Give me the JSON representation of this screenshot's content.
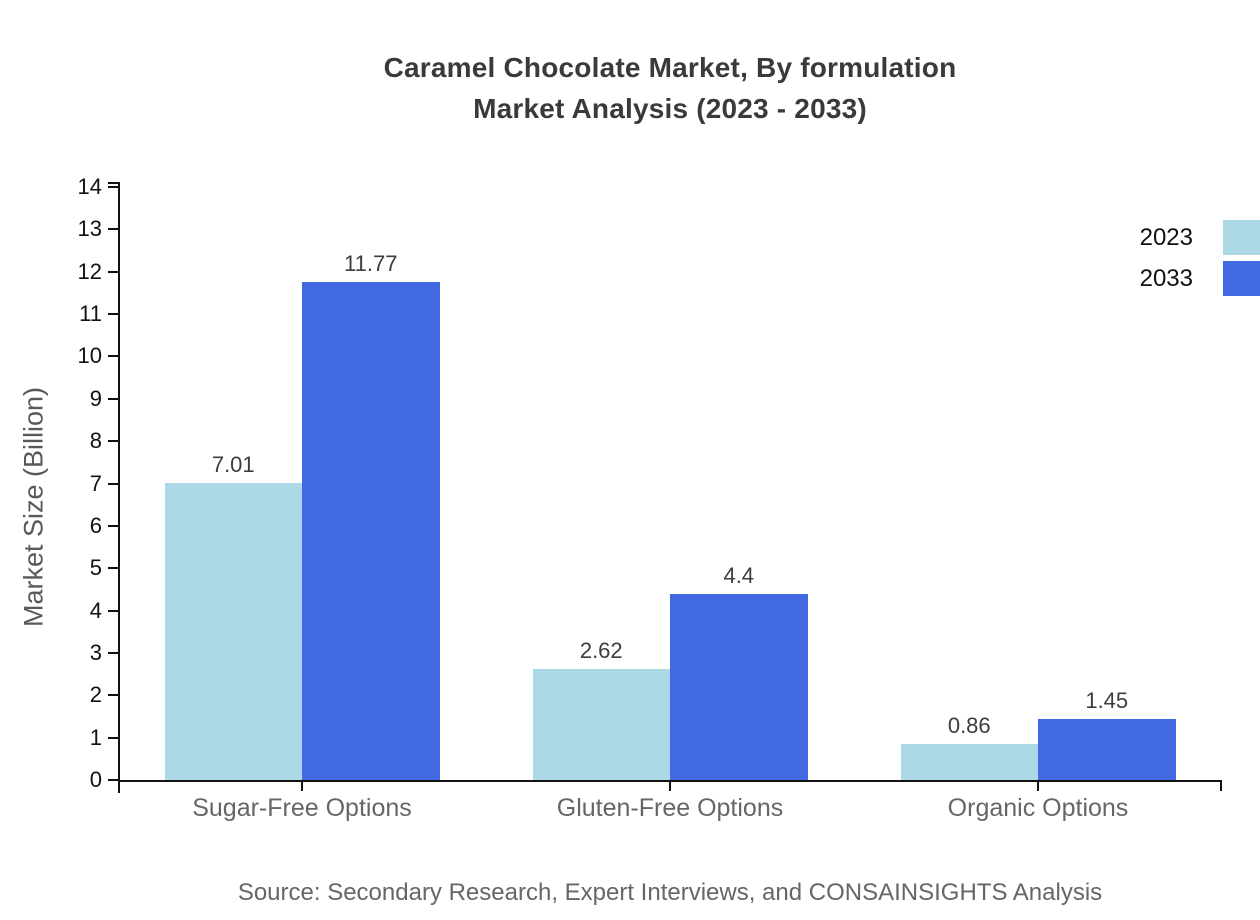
{
  "chart_data": {
    "type": "bar",
    "title": "Caramel Chocolate Market, By formulation",
    "subtitle": "Market Analysis (2023 - 2033)",
    "ylabel": "Market Size (Billion)",
    "categories": [
      "Sugar-Free Options",
      "Gluten-Free Options",
      "Organic Options"
    ],
    "series": [
      {
        "name": "2023",
        "color": "#ADD8E6",
        "values": [
          7.01,
          2.62,
          0.86
        ]
      },
      {
        "name": "2033",
        "color": "#4169E1",
        "values": [
          11.77,
          4.4,
          1.45
        ]
      }
    ],
    "ylim": [
      0,
      14.12
    ],
    "yticks": [
      0,
      1,
      2,
      3,
      4,
      5,
      6,
      7,
      8,
      9,
      10,
      11,
      12,
      13,
      14
    ],
    "grid": false,
    "legend_position": "top-right",
    "axis_color": "#111111",
    "source": "Source: Secondary Research, Expert Interviews, and CONSAINSIGHTS Analysis"
  }
}
